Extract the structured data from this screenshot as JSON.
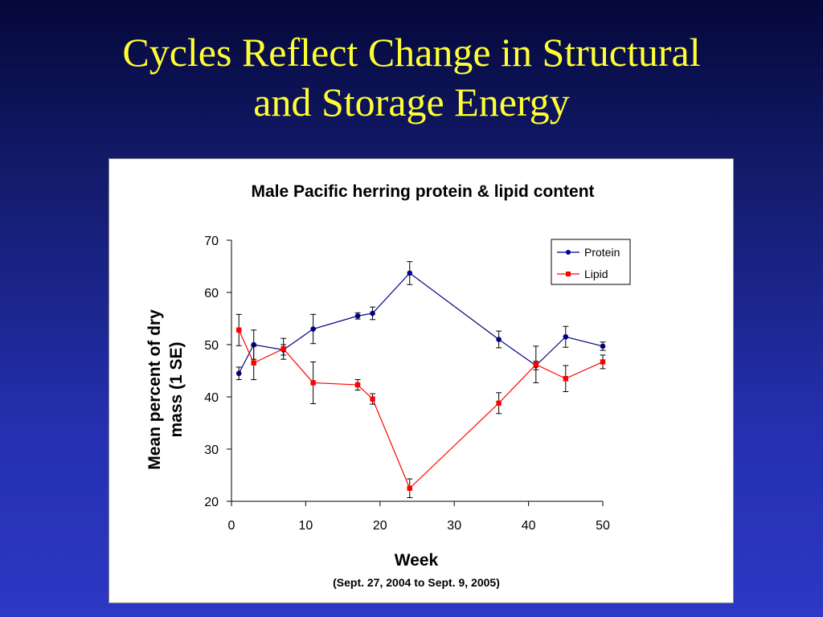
{
  "slide": {
    "title_line1": "Cycles Reflect Change in Structural",
    "title_line2": "and Storage Energy",
    "title_color": "#ffff33",
    "background_color": "#2430b0"
  },
  "chart_data": {
    "type": "line",
    "title": "Male Pacific herring protein & lipid content",
    "xlabel": "Week",
    "xlabel_sub": "(Sept. 27, 2004 to Sept. 9, 2005)",
    "ylabel_line1": "Mean percent of dry",
    "ylabel_line2": "mass (1 SE)",
    "xlim": [
      0,
      50
    ],
    "ylim": [
      20,
      70
    ],
    "xticks": [
      0,
      10,
      20,
      30,
      40,
      50
    ],
    "yticks": [
      20,
      30,
      40,
      50,
      60,
      70
    ],
    "grid": false,
    "legend_position": "top-right",
    "series": [
      {
        "name": "Protein",
        "color": "#000080",
        "marker": "circle",
        "x": [
          1,
          3,
          7,
          11,
          17,
          19,
          24,
          36,
          41,
          45,
          50
        ],
        "y": [
          44.5,
          50.0,
          49.0,
          53.0,
          55.5,
          56.0,
          63.7,
          51.0,
          46.0,
          51.5,
          49.7
        ],
        "err": [
          1.2,
          2.8,
          1.0,
          2.8,
          0.6,
          1.2,
          2.2,
          1.6,
          0.8,
          2.0,
          0.8
        ]
      },
      {
        "name": "Lipid",
        "color": "#ff0000",
        "marker": "square",
        "x": [
          1,
          3,
          7,
          11,
          17,
          19,
          24,
          36,
          41,
          45,
          50
        ],
        "y": [
          52.8,
          46.5,
          49.2,
          42.7,
          42.3,
          39.6,
          22.5,
          38.8,
          46.2,
          43.5,
          46.7
        ],
        "err": [
          3.0,
          3.2,
          2.0,
          4.0,
          1.0,
          1.0,
          1.8,
          2.0,
          3.5,
          2.5,
          1.3
        ]
      }
    ]
  }
}
